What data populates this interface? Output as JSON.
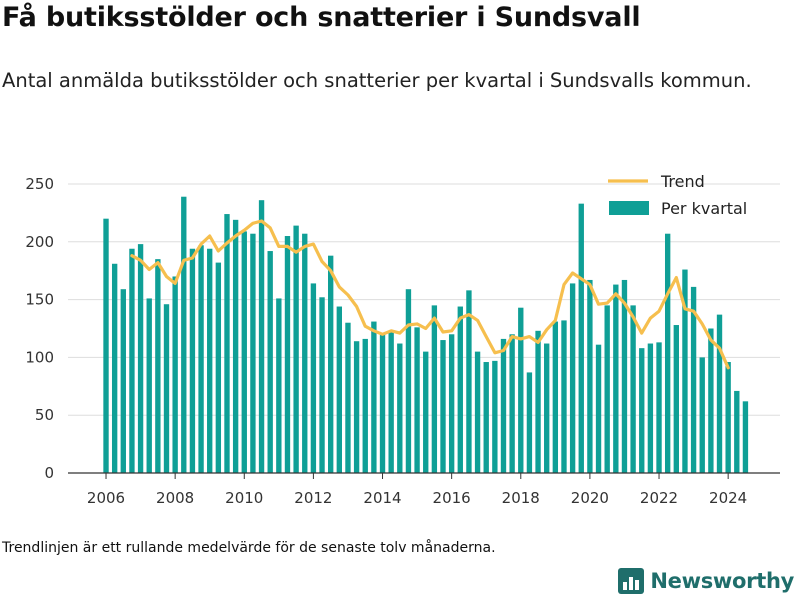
{
  "header": {
    "title": "Få butiksstölder och snatterier i Sundsvall",
    "subtitle": "Antal anmälda butiksstölder och snatterier per kvartal i Sundsvalls kommun."
  },
  "footnote": "Trendlinjen är ett rullande medelvärde för de senaste tolv månaderna.",
  "brand": {
    "name": "Newsworthy",
    "icon": "newsworthy-logo-icon"
  },
  "colors": {
    "bars": "#0f9f96",
    "trend": "#f6bf4e",
    "grid": "#dddddd",
    "brand": "#1f6e6b"
  },
  "chart_data": {
    "type": "bar",
    "x_start": 2006.0,
    "x_step": 0.25,
    "xlim": [
      2004.9,
      2025.5
    ],
    "ylim": [
      0,
      250
    ],
    "yticks": [
      0,
      50,
      100,
      150,
      200,
      250
    ],
    "xticks": [
      2006,
      2008,
      2010,
      2012,
      2014,
      2016,
      2018,
      2020,
      2022,
      2024
    ],
    "grid": true,
    "legend_position": "top-right",
    "series": [
      {
        "name": "Per kvartal",
        "type": "bar",
        "values": [
          220,
          181,
          159,
          194,
          198,
          151,
          185,
          146,
          170,
          239,
          194,
          197,
          194,
          182,
          224,
          219,
          209,
          207,
          236,
          192,
          151,
          205,
          214,
          207,
          164,
          152,
          188,
          144,
          130,
          114,
          116,
          131,
          120,
          123,
          112,
          159,
          126,
          105,
          145,
          115,
          120,
          144,
          158,
          105,
          96,
          97,
          116,
          120,
          143,
          87,
          123,
          112,
          131,
          132,
          164,
          233,
          167,
          111,
          145,
          163,
          167,
          145,
          108,
          112,
          113,
          207,
          128,
          176,
          161,
          100,
          125,
          137,
          96,
          71,
          62
        ]
      },
      {
        "name": "Trend",
        "type": "line",
        "x_start": 2006.75,
        "values": [
          188,
          184,
          176,
          182,
          170,
          164,
          184,
          186,
          198,
          205,
          192,
          199,
          205,
          210,
          216,
          218,
          212,
          196,
          196,
          191,
          196,
          198,
          183,
          175,
          161,
          154,
          144,
          127,
          123,
          120,
          123,
          121,
          128,
          129,
          125,
          134,
          122,
          123,
          134,
          137,
          132,
          118,
          104,
          106,
          118,
          116,
          118,
          113,
          124,
          132,
          163,
          173,
          168,
          163,
          146,
          147,
          155,
          147,
          135,
          121,
          134,
          140,
          155,
          169,
          142,
          140,
          129,
          115,
          108,
          91
        ]
      }
    ]
  }
}
